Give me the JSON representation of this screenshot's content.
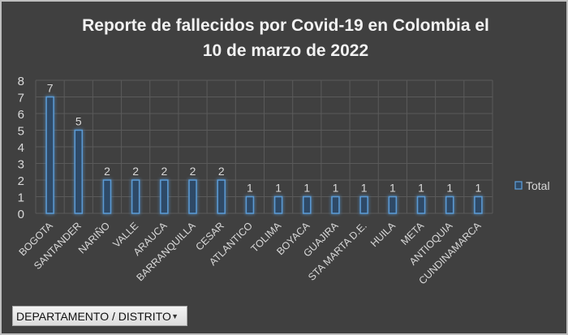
{
  "chart_data": {
    "type": "bar",
    "title": "Reporte de fallecidos por Covid-19 en Colombia el 10 de marzo de 2022",
    "title_lines": [
      "Reporte de fallecidos por Covid-19 en Colombia el",
      "10 de marzo de 2022"
    ],
    "categories": [
      "BOGOTA",
      "SANTANDER",
      "NARIÑO",
      "VALLE",
      "ARAUCA",
      "BARRANQUILLA",
      "CESAR",
      "ATLANTICO",
      "TOLIMA",
      "BOYACA",
      "GUAJIRA",
      "STA MARTA D.E.",
      "HUILA",
      "META",
      "ANTIOQUIA",
      "CUNDINAMARCA"
    ],
    "series": [
      {
        "name": "Total",
        "values": [
          7,
          5,
          2,
          2,
          2,
          2,
          2,
          1,
          1,
          1,
          1,
          1,
          1,
          1,
          1,
          1
        ]
      }
    ],
    "ylim": [
      0,
      8
    ],
    "yticks": [
      0,
      1,
      2,
      3,
      4,
      5,
      6,
      7,
      8
    ],
    "grid": true,
    "data_labels": true,
    "legend": "right",
    "colors": {
      "background": "#404040",
      "bar_outline": "#5b9bd5",
      "bar_fill": "#2f4a66",
      "grid": "#5a5a5a",
      "text": "#d9d9d9"
    }
  },
  "field_button": {
    "label": "DEPARTAMENTO / DISTRITO",
    "icon": "dropdown-arrow-icon"
  }
}
